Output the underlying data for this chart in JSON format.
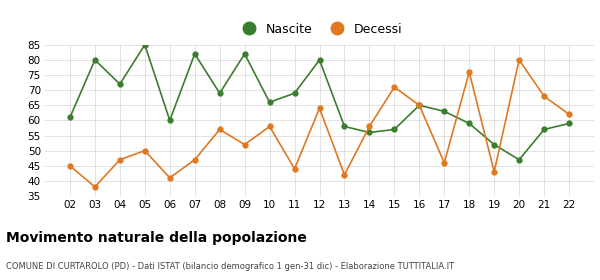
{
  "years": [
    "02",
    "03",
    "04",
    "05",
    "06",
    "07",
    "08",
    "09",
    "10",
    "11",
    "12",
    "13",
    "14",
    "15",
    "16",
    "17",
    "18",
    "19",
    "20",
    "21",
    "22"
  ],
  "nascite": [
    61,
    80,
    72,
    85,
    60,
    82,
    69,
    82,
    66,
    69,
    80,
    58,
    56,
    57,
    65,
    63,
    59,
    52,
    47,
    57,
    59
  ],
  "decessi": [
    45,
    38,
    47,
    50,
    41,
    47,
    57,
    52,
    58,
    44,
    64,
    42,
    58,
    71,
    65,
    46,
    76,
    43,
    80,
    68,
    62
  ],
  "nascite_color": "#3a7d2c",
  "decessi_color": "#e07820",
  "title": "Movimento naturale della popolazione",
  "subtitle": "COMUNE DI CURTAROLO (PD) - Dati ISTAT (bilancio demografico 1 gen-31 dic) - Elaborazione TUTTITALIA.IT",
  "legend_nascite": "Nascite",
  "legend_decessi": "Decessi",
  "ylim": [
    35,
    85
  ],
  "yticks": [
    35,
    40,
    45,
    50,
    55,
    60,
    65,
    70,
    75,
    80,
    85
  ],
  "background_color": "#ffffff",
  "grid_color": "#dddddd"
}
